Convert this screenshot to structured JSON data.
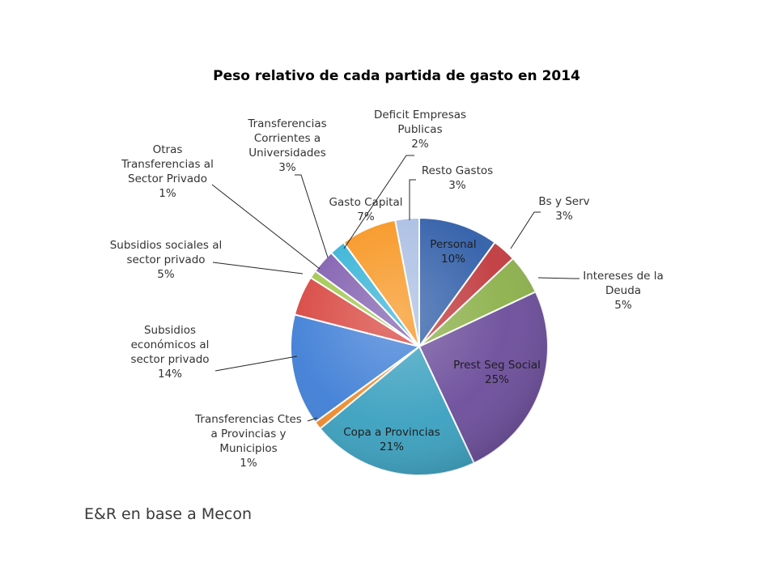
{
  "source_note": "E&R en base a Mecon",
  "chart_data": {
    "type": "pie",
    "title": "Peso relativo de cada partida de gasto en 2014",
    "slices": [
      {
        "label": "Personal",
        "value": 10,
        "pct_text": "10%",
        "color": "#2f5da8"
      },
      {
        "label": "Bs y Serv",
        "value": 3,
        "pct_text": "3%",
        "color": "#c0393d"
      },
      {
        "label": "Intereses de la Deuda",
        "value": 5,
        "pct_text": "5%",
        "color": "#8cb04a"
      },
      {
        "label": "Prest Seg Social",
        "value": 25,
        "pct_text": "25%",
        "color": "#6b4c9a"
      },
      {
        "label": "Copa a Provincias",
        "value": 21,
        "pct_text": "21%",
        "color": "#3aa0bf"
      },
      {
        "label": "Transferencias Ctes a Provincias y Municipios",
        "value": 1,
        "pct_text": "1%",
        "color": "#ef8a2c"
      },
      {
        "label": "Subsidios económicos al sector privado",
        "value": 14,
        "pct_text": "14%",
        "color": "#3f7ed6"
      },
      {
        "label": "Subsidios sociales al sector privado",
        "value": 5,
        "pct_text": "5%",
        "color": "#d8453f"
      },
      {
        "label": "Otras Transferencias al Sector Privado",
        "value": 1,
        "pct_text": "1%",
        "color": "#a2c64e"
      },
      {
        "label": "Transferencias Corrientes a Universidades",
        "value": 3,
        "pct_text": "3%",
        "color": "#7f5cae"
      },
      {
        "label": "Deficit Empresas Publicas",
        "value": 2,
        "pct_text": "2%",
        "color": "#34b1d6"
      },
      {
        "label": "Gasto Capital",
        "value": 7,
        "pct_text": "7%",
        "color": "#f7941e"
      },
      {
        "label": "Resto Gastos",
        "value": 3,
        "pct_text": "3%",
        "color": "#a9bde3"
      }
    ]
  }
}
